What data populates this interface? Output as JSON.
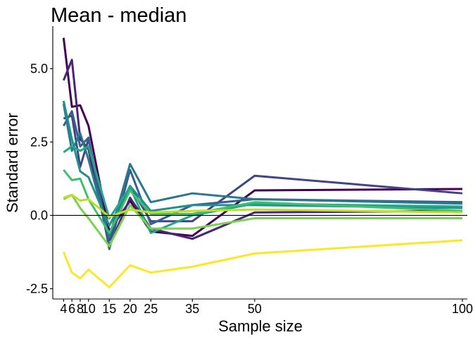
{
  "chart_data": {
    "type": "line",
    "title": "Mean - median",
    "xlabel": "Sample size",
    "ylabel": "Standard error",
    "x": [
      4,
      6,
      8,
      10,
      15,
      20,
      25,
      35,
      50,
      100
    ],
    "x_tick_labels": [
      "4",
      "6",
      "8",
      "10",
      "15",
      "20",
      "25",
      "35",
      "50",
      "100"
    ],
    "y_ticks": [
      5.0,
      2.5,
      0.0,
      -2.5
    ],
    "y_tick_labels": [
      "5.0",
      "2.5",
      "0.0",
      "-2.5"
    ],
    "xlim": [
      1.4,
      101.2
    ],
    "ylim": [
      -2.85,
      6.45
    ],
    "grid": false,
    "legend": "none",
    "reference_line_y": 0,
    "series": [
      {
        "color": "#440154",
        "values": [
          6.05,
          3.7,
          3.75,
          3.05,
          -0.55,
          0.5,
          -0.55,
          -0.7,
          0.85,
          0.9
        ]
      },
      {
        "color": "#482576",
        "values": [
          4.6,
          5.3,
          2.6,
          2.25,
          -1.05,
          0.6,
          -0.45,
          -0.8,
          0.1,
          0.15
        ]
      },
      {
        "color": "#414487",
        "values": [
          3.3,
          3.4,
          1.65,
          2.6,
          -0.85,
          1.0,
          -0.2,
          -0.2,
          1.35,
          0.75
        ]
      },
      {
        "color": "#35608d",
        "values": [
          3.05,
          3.55,
          2.35,
          2.65,
          -1.15,
          1.55,
          -0.3,
          0.35,
          0.55,
          0.45
        ]
      },
      {
        "color": "#2a788e",
        "values": [
          3.8,
          2.2,
          2.8,
          1.9,
          -0.75,
          1.75,
          0.45,
          0.75,
          0.55,
          0.4
        ]
      },
      {
        "color": "#21908d",
        "values": [
          3.9,
          2.6,
          1.5,
          1.3,
          -0.35,
          1.0,
          0.15,
          0.35,
          0.35,
          0.25
        ]
      },
      {
        "color": "#22a884",
        "values": [
          2.15,
          2.35,
          2.2,
          2.35,
          -0.1,
          0.95,
          -0.6,
          0.0,
          0.4,
          0.3
        ]
      },
      {
        "color": "#42be71",
        "values": [
          1.55,
          1.2,
          1.25,
          0.55,
          -0.6,
          0.85,
          0.05,
          0.05,
          0.45,
          0.15
        ]
      },
      {
        "color": "#7ad151",
        "values": [
          0.55,
          0.7,
          0.25,
          -0.1,
          -1.05,
          0.35,
          -0.45,
          -0.45,
          -0.1,
          -0.1
        ]
      },
      {
        "color": "#bddf26",
        "values": [
          0.6,
          0.7,
          0.5,
          0.55,
          -0.05,
          0.2,
          0.1,
          0.15,
          0.2,
          0.1
        ]
      },
      {
        "color": "#fde725",
        "values": [
          -1.25,
          -1.95,
          -2.15,
          -1.85,
          -2.45,
          -1.7,
          -1.95,
          -1.75,
          -1.3,
          -0.85
        ]
      }
    ]
  }
}
